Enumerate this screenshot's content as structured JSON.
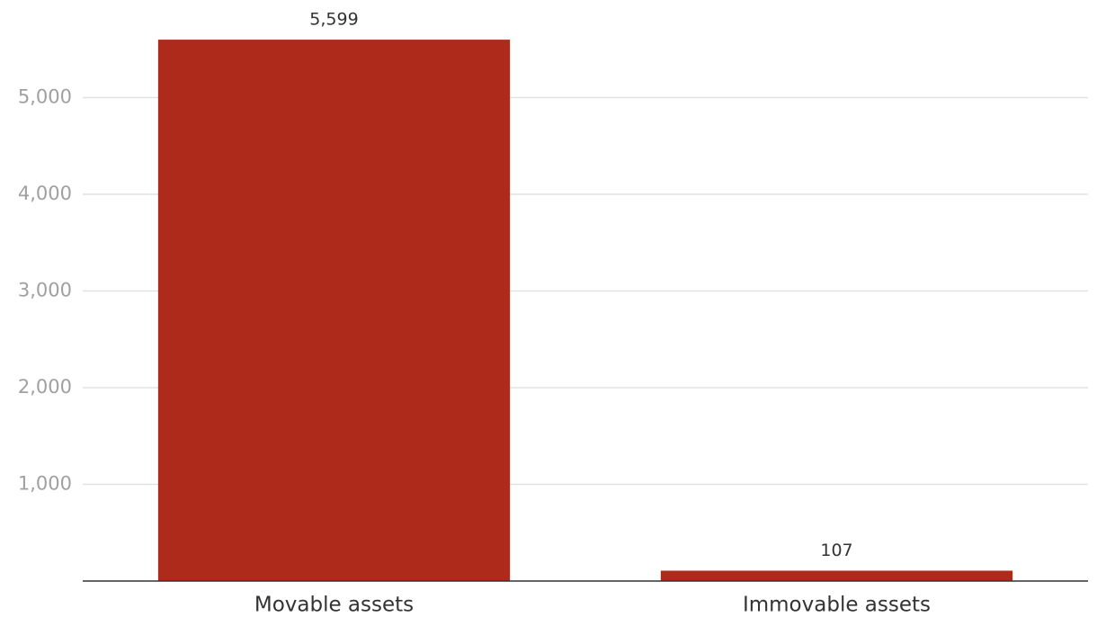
{
  "chart_data": {
    "type": "bar",
    "categories": [
      "Movable assets",
      "Immovable assets"
    ],
    "values": [
      5599,
      107
    ],
    "value_labels": [
      "5,599",
      "107"
    ],
    "color": "#ae2a1a",
    "ylim": [
      0,
      6000
    ],
    "yticks": [
      {
        "value": 1000,
        "label": "1,000"
      },
      {
        "value": 2000,
        "label": "2,000"
      },
      {
        "value": 3000,
        "label": "3,000"
      },
      {
        "value": 4000,
        "label": "4,000"
      },
      {
        "value": 5000,
        "label": "5,000"
      }
    ],
    "grid": true
  }
}
